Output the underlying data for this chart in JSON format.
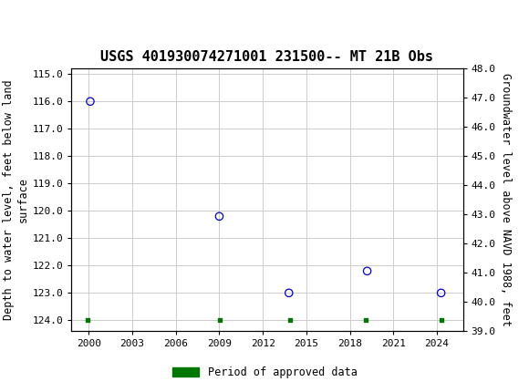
{
  "title": "USGS 401930074271001 231500-- MT 21B Obs",
  "scatter_x": [
    2000.1,
    2009.0,
    2013.8,
    2019.2,
    2024.3
  ],
  "scatter_y": [
    116.0,
    120.2,
    123.0,
    122.2,
    123.0
  ],
  "green_markers_x": [
    1999.9,
    2009.05,
    2013.9,
    2019.1,
    2024.35
  ],
  "green_markers_y": [
    124.0,
    124.0,
    124.0,
    124.0,
    124.0
  ],
  "xlim": [
    1998.8,
    2025.8
  ],
  "ylim_left_bottom": 124.4,
  "ylim_left_top": 114.8,
  "ylim_right_bottom": 39.0,
  "ylim_right_top": 48.0,
  "left_yticks": [
    115.0,
    116.0,
    117.0,
    118.0,
    119.0,
    120.0,
    121.0,
    122.0,
    123.0,
    124.0
  ],
  "right_yticks": [
    48.0,
    47.0,
    46.0,
    45.0,
    44.0,
    43.0,
    42.0,
    41.0,
    40.0,
    39.0
  ],
  "xticks": [
    2000,
    2003,
    2006,
    2009,
    2012,
    2015,
    2018,
    2021,
    2024
  ],
  "ylabel_left": "Depth to water level, feet below land\nsurface",
  "ylabel_right": "Groundwater level above NAVD 1988, feet",
  "legend_label": "Period of approved data",
  "marker_color": "#0000cc",
  "marker_size": 6,
  "green_color": "#007700",
  "header_color": "#1a6b3c",
  "bg_color": "#ffffff",
  "grid_color": "#cccccc",
  "title_fontsize": 11,
  "label_fontsize": 8.5,
  "tick_fontsize": 8
}
